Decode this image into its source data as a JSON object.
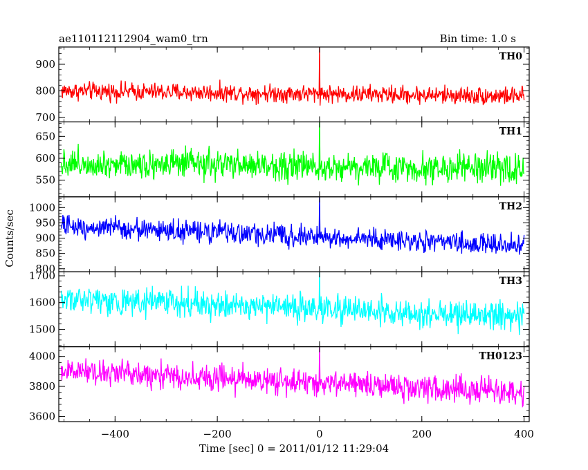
{
  "header": {
    "title": "ae110112112904_wam0_trn",
    "bin_time": "Bin time: 1.0 s"
  },
  "axes": {
    "ylabel": "Counts/sec",
    "xlabel": "Time [sec] 0 = 2011/01/12 11:29:04"
  },
  "chart_data": {
    "type": "line",
    "x": {
      "range": [
        -510,
        410
      ],
      "ticks": [
        -400,
        -200,
        0,
        200,
        400
      ],
      "step": 1,
      "start": -505,
      "end": 400
    },
    "panels": [
      {
        "label": "TH0",
        "color": "#ff0000",
        "ylim": [
          683,
          965
        ],
        "ticks": [
          700,
          800,
          900
        ],
        "trend": [
          [
            -505,
            800
          ],
          [
            400,
            780
          ]
        ],
        "noise": 24
      },
      {
        "label": "TH1",
        "color": "#00ff00",
        "ylim": [
          512,
          683
        ],
        "ticks": [
          550,
          600,
          650
        ],
        "trend": [
          [
            -505,
            590
          ],
          [
            400,
            575
          ]
        ],
        "noise": 24
      },
      {
        "label": "TH2",
        "color": "#0000ff",
        "ylim": [
          790,
          1035
        ],
        "ticks": [
          800,
          850,
          900,
          950,
          1000
        ],
        "trend": [
          [
            -505,
            940
          ],
          [
            400,
            875
          ]
        ],
        "noise": 25
      },
      {
        "label": "TH3",
        "color": "#00ffff",
        "ylim": [
          1435,
          1715
        ],
        "ticks": [
          1500,
          1600,
          1700
        ],
        "trend": [
          [
            -505,
            1615
          ],
          [
            400,
            1545
          ]
        ],
        "noise": 37
      },
      {
        "label": "TH0123",
        "color": "#ff00ff",
        "ylim": [
          3565,
          4065
        ],
        "ticks": [
          3600,
          3800,
          4000
        ],
        "trend": [
          [
            -505,
            3905
          ],
          [
            400,
            3755
          ]
        ],
        "noise": 62
      }
    ]
  }
}
